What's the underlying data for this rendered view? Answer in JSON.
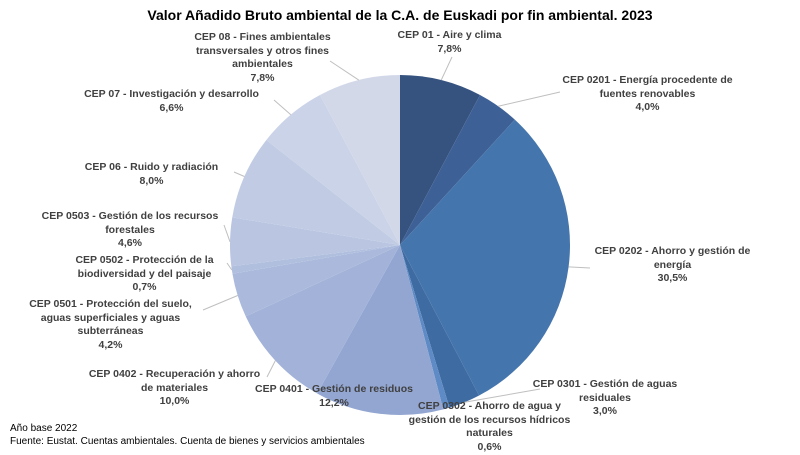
{
  "title": "Valor Añadido Bruto ambiental de la C.A. de Euskadi por fin ambiental. 2023",
  "footer": {
    "line1": "Año base 2022",
    "line2": "Fuente: Eustat. Cuentas ambientales. Cuenta de bienes y servicios ambientales"
  },
  "chart_data": {
    "type": "pie",
    "title": "Valor Añadido Bruto ambiental de la C.A. de Euskadi por fin ambiental. 2023",
    "start_angle_deg": 0,
    "direction": "clockwise",
    "legend_position": "none",
    "label_style": "callout-labels-with-percent",
    "label_color": "#404040",
    "leader_line_color": "#BFBFBF",
    "slices": [
      {
        "label": "CEP 01 - Aire y clima",
        "value_pct": 7.8,
        "display": "7,8%",
        "color": "#36537F"
      },
      {
        "label": "CEP 0201 - Energía procedente de fuentes renovables",
        "value_pct": 4.0,
        "display": "4,0%",
        "color": "#3D6096"
      },
      {
        "label": "CEP 0202 - Ahorro y gestión de energía",
        "value_pct": 30.5,
        "display": "30,5%",
        "color": "#4575AD"
      },
      {
        "label": "CEP 0301 - Gestión de aguas residuales",
        "value_pct": 3.0,
        "display": "3,0%",
        "color": "#3F6BA3"
      },
      {
        "label": "CEP 0302 - Ahorro de agua y gestión de los recursos hídricos naturales",
        "value_pct": 0.6,
        "display": "0,6%",
        "color": "#5E8BC5"
      },
      {
        "label": "CEP 0401 - Gestión de residuos",
        "value_pct": 12.2,
        "display": "12,2%",
        "color": "#93A6D1"
      },
      {
        "label": "CEP 0402 - Recuperación y ahorro de materiales",
        "value_pct": 10.0,
        "display": "10,0%",
        "color": "#A2B2D8"
      },
      {
        "label": "CEP 0501 - Protección del suelo, aguas superficiales y aguas subterráneas",
        "value_pct": 4.2,
        "display": "4,2%",
        "color": "#ABBADC"
      },
      {
        "label": "CEP 0502 - Protección de la biodiversidad y del paisaje",
        "value_pct": 0.7,
        "display": "0,7%",
        "color": "#B1BFDF"
      },
      {
        "label": "CEP 0503 - Gestión de los recursos forestales",
        "value_pct": 4.6,
        "display": "4,6%",
        "color": "#B9C5E1"
      },
      {
        "label": "CEP 06 - Ruido y radiación",
        "value_pct": 8.0,
        "display": "8,0%",
        "color": "#C1CCE4"
      },
      {
        "label": "CEP 07 - Investigación y desarrollo",
        "value_pct": 6.6,
        "display": "6,6%",
        "color": "#CAD3E7"
      },
      {
        "label": "CEP 08 - Fines ambientales transversales y otros fines ambientales",
        "value_pct": 7.8,
        "display": "7,8%",
        "color": "#D3D8E9"
      }
    ]
  }
}
